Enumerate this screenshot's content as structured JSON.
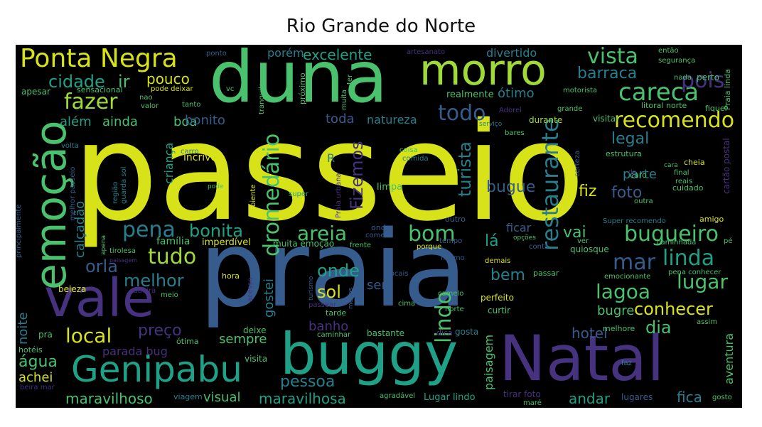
{
  "title": "Rio Grande do Norte",
  "palette": {
    "yellow": "#d8e219",
    "lime": "#a0da39",
    "green": "#4ac16d",
    "teal": "#1fa187",
    "cyan": "#277f8e",
    "blue": "#365c8d",
    "indigo": "#46327e",
    "purple": "#440154"
  },
  "words": [
    {
      "text": "passeio",
      "weight": 1.0
    },
    {
      "text": "praia",
      "weight": 0.82
    },
    {
      "text": "duna",
      "weight": 0.55
    },
    {
      "text": "Natal",
      "weight": 0.52
    },
    {
      "text": "buggy",
      "weight": 0.48
    },
    {
      "text": "vale",
      "weight": 0.4
    },
    {
      "text": "emoção",
      "weight": 0.38
    },
    {
      "text": "morro",
      "weight": 0.36
    },
    {
      "text": "Genipabu",
      "weight": 0.3
    },
    {
      "text": "Ponta Negra",
      "weight": 0.2
    },
    {
      "text": "careca",
      "weight": 0.18
    },
    {
      "text": "recomendo",
      "weight": 0.16
    },
    {
      "text": "restaurante",
      "weight": 0.16
    },
    {
      "text": "vista",
      "weight": 0.15
    },
    {
      "text": "pois",
      "weight": 0.14
    },
    {
      "text": "bom",
      "weight": 0.14
    },
    {
      "text": "dromedário",
      "weight": 0.14
    },
    {
      "text": "lindo",
      "weight": 0.13
    },
    {
      "text": "mar",
      "weight": 0.13
    },
    {
      "text": "linda",
      "weight": 0.13
    },
    {
      "text": "bugueiro",
      "weight": 0.13
    },
    {
      "text": "fazer",
      "weight": 0.12
    },
    {
      "text": "pena",
      "weight": 0.12
    },
    {
      "text": "todo",
      "weight": 0.12
    },
    {
      "text": "tudo",
      "weight": 0.12
    },
    {
      "text": "areia",
      "weight": 0.12
    },
    {
      "text": "lugar",
      "weight": 0.12
    },
    {
      "text": "conhecer",
      "weight": 0.11
    },
    {
      "text": "lagoa",
      "weight": 0.11
    },
    {
      "text": "local",
      "weight": 0.11
    },
    {
      "text": "cidade",
      "weight": 0.1
    },
    {
      "text": "ir",
      "weight": 0.1
    },
    {
      "text": "excelente",
      "weight": 0.1
    },
    {
      "text": "barraca",
      "weight": 0.1
    },
    {
      "text": "orla",
      "weight": 0.1
    },
    {
      "text": "melhor",
      "weight": 0.1
    },
    {
      "text": "bonita",
      "weight": 0.1
    },
    {
      "text": "Fizemos",
      "weight": 0.1
    },
    {
      "text": "turista",
      "weight": 0.1
    },
    {
      "text": "sol",
      "weight": 0.1
    },
    {
      "text": "onde",
      "weight": 0.1
    },
    {
      "text": "vai",
      "weight": 0.09
    },
    {
      "text": "dia",
      "weight": 0.09
    },
    {
      "text": "pouco",
      "weight": 0.09
    },
    {
      "text": "bugue",
      "weight": 0.09
    },
    {
      "text": "legal",
      "weight": 0.09
    },
    {
      "text": "pessoa",
      "weight": 0.09
    },
    {
      "text": "foto",
      "weight": 0.09
    },
    {
      "text": "fiz",
      "weight": 0.09
    },
    {
      "text": "bem",
      "weight": 0.09
    },
    {
      "text": "lá",
      "weight": 0.09
    },
    {
      "text": "maravilhosa",
      "weight": 0.08
    },
    {
      "text": "maravilhoso",
      "weight": 0.08
    },
    {
      "text": "água",
      "weight": 0.08
    },
    {
      "text": "preço",
      "weight": 0.08
    },
    {
      "text": "hotel",
      "weight": 0.08
    },
    {
      "text": "andar",
      "weight": 0.08
    },
    {
      "text": "fica",
      "weight": 0.08
    },
    {
      "text": "ótimo",
      "weight": 0.08
    },
    {
      "text": "boa",
      "weight": 0.08
    },
    {
      "text": "toda",
      "weight": 0.08
    },
    {
      "text": "natureza",
      "weight": 0.08
    },
    {
      "text": "além",
      "weight": 0.08
    },
    {
      "text": "ainda",
      "weight": 0.08
    },
    {
      "text": "bonito",
      "weight": 0.08
    },
    {
      "text": "parte",
      "weight": 0.08
    },
    {
      "text": "porém",
      "weight": 0.08
    },
    {
      "text": "divertido",
      "weight": 0.08
    },
    {
      "text": "sempre",
      "weight": 0.08
    },
    {
      "text": "paisagem",
      "weight": 0.08
    },
    {
      "text": "visual",
      "weight": 0.08
    },
    {
      "text": "gostei",
      "weight": 0.08
    },
    {
      "text": "noite",
      "weight": 0.08
    },
    {
      "text": "banho",
      "weight": 0.08
    },
    {
      "text": "bugre",
      "weight": 0.08
    },
    {
      "text": "ser",
      "weight": 0.08
    },
    {
      "text": "ficar",
      "weight": 0.07
    },
    {
      "text": "aventura",
      "weight": 0.07
    },
    {
      "text": "parada bug",
      "weight": 0.07
    },
    {
      "text": "calçadão",
      "weight": 0.07
    },
    {
      "text": "família",
      "weight": 0.07
    },
    {
      "text": "criança",
      "weight": 0.07
    },
    {
      "text": "achei",
      "weight": 0.07
    },
    {
      "text": "R",
      "weight": 0.06
    },
    {
      "text": "incrível",
      "weight": 0.06
    },
    {
      "text": "imperdível",
      "weight": 0.06
    },
    {
      "text": "muita emoção",
      "weight": 0.06
    },
    {
      "text": "quiosque",
      "weight": 0.06
    },
    {
      "text": "beleza",
      "weight": 0.06
    },
    {
      "text": "limpa",
      "weight": 0.06
    },
    {
      "text": "realmente",
      "weight": 0.06
    },
    {
      "text": "visitar",
      "weight": 0.06
    },
    {
      "text": "durante",
      "weight": 0.06
    },
    {
      "text": "perfeito",
      "weight": 0.06
    },
    {
      "text": "curtir",
      "weight": 0.06
    },
    {
      "text": "deixe",
      "weight": 0.06
    },
    {
      "text": "bastante",
      "weight": 0.06
    },
    {
      "text": "visita",
      "weight": 0.06
    },
    {
      "text": "viagem",
      "weight": 0.06
    },
    {
      "text": "lugares",
      "weight": 0.06
    },
    {
      "text": "tarde",
      "weight": 0.06
    },
    {
      "text": "passar",
      "weight": 0.06
    },
    {
      "text": "ótima",
      "weight": 0.06
    },
    {
      "text": "hora",
      "weight": 0.06
    },
    {
      "text": "Lugar lindo",
      "weight": 0.06
    },
    {
      "text": "tirar foto",
      "weight": 0.06
    },
    {
      "text": "melhore",
      "weight": 0.06
    },
    {
      "text": "emocionante",
      "weight": 0.06
    },
    {
      "text": "pena conhecer",
      "weight": 0.06
    },
    {
      "text": "caminhada",
      "weight": 0.06
    },
    {
      "text": "litoral norte",
      "weight": 0.06
    },
    {
      "text": "fiquei",
      "weight": 0.06
    },
    {
      "text": "estrutura",
      "weight": 0.06
    },
    {
      "text": "caro",
      "weight": 0.06
    },
    {
      "text": "cheia",
      "weight": 0.06
    },
    {
      "text": "cuidado",
      "weight": 0.06
    },
    {
      "text": "cartão postal",
      "weight": 0.06
    },
    {
      "text": "amigo",
      "weight": 0.06
    },
    {
      "text": "perto",
      "weight": 0.06
    },
    {
      "text": "motorista",
      "weight": 0.06
    },
    {
      "text": "segurança",
      "weight": 0.06
    },
    {
      "text": "nada",
      "weight": 0.06
    },
    {
      "text": "então",
      "weight": 0.06
    },
    {
      "text": "Praia linda",
      "weight": 0.06
    },
    {
      "text": "grande",
      "weight": 0.06
    },
    {
      "text": "serviço",
      "weight": 0.06
    },
    {
      "text": "Adorei",
      "weight": 0.06
    },
    {
      "text": "próximo",
      "weight": 0.06
    },
    {
      "text": "muita",
      "weight": 0.06
    },
    {
      "text": "ter",
      "weight": 0.06
    },
    {
      "text": "artesanato",
      "weight": 0.06
    },
    {
      "text": "ponto",
      "weight": 0.06
    },
    {
      "text": "apesar",
      "weight": 0.06
    },
    {
      "text": "sensacional",
      "weight": 0.06
    },
    {
      "text": "pode deixar",
      "weight": 0.06
    },
    {
      "text": "vc",
      "weight": 0.06
    },
    {
      "text": "tranquilo",
      "weight": 0.06
    },
    {
      "text": "valor",
      "weight": 0.06
    },
    {
      "text": "tanto",
      "weight": 0.06
    },
    {
      "text": "nao",
      "weight": 0.06
    },
    {
      "text": "volta",
      "weight": 0.06
    },
    {
      "text": "carro",
      "weight": 0.06
    },
    {
      "text": "região",
      "weight": 0.06
    },
    {
      "text": "guarda sol",
      "weight": 0.06
    },
    {
      "text": "melhor passeio",
      "weight": 0.06
    },
    {
      "text": "principalmente",
      "weight": 0.06
    },
    {
      "text": "ambiente",
      "weight": 0.06
    },
    {
      "text": "Praia urbana",
      "weight": 0.06
    },
    {
      "text": "coisa",
      "weight": 0.06
    },
    {
      "text": "comida",
      "weight": 0.06
    },
    {
      "text": "bares",
      "weight": 0.06
    },
    {
      "text": "certeza",
      "weight": 0.06
    },
    {
      "text": "super",
      "weight": 0.06
    },
    {
      "text": "outro",
      "weight": 0.06
    },
    {
      "text": "onda",
      "weight": 0.06
    },
    {
      "text": "comer",
      "weight": 0.06
    },
    {
      "text": "frente",
      "weight": 0.06
    },
    {
      "text": "tempo",
      "weight": 0.06
    },
    {
      "text": "porque",
      "weight": 0.06
    },
    {
      "text": "opções",
      "weight": 0.06
    },
    {
      "text": "ver",
      "weight": 0.06
    },
    {
      "text": "conta",
      "weight": 0.06
    },
    {
      "text": "Super recomendo",
      "weight": 0.06
    },
    {
      "text": "final",
      "weight": 0.06
    },
    {
      "text": "reais",
      "weight": 0.06
    },
    {
      "text": "outra",
      "weight": 0.06
    },
    {
      "text": "cara",
      "weight": 0.06
    },
    {
      "text": "pé",
      "weight": 0.06
    },
    {
      "text": "apena",
      "weight": 0.06
    },
    {
      "text": "tirolesa",
      "weight": 0.06
    },
    {
      "text": "paisagem",
      "weight": 0.06
    },
    {
      "text": "cadeira",
      "weight": 0.06
    },
    {
      "text": "meio",
      "weight": 0.06
    },
    {
      "text": "acesso",
      "weight": 0.06
    },
    {
      "text": "turismo",
      "weight": 0.06
    },
    {
      "text": "locais",
      "weight": 0.06
    },
    {
      "text": "ficamo",
      "weight": 0.06
    },
    {
      "text": "demais",
      "weight": 0.06
    },
    {
      "text": "menos",
      "weight": 0.06
    },
    {
      "text": "passear",
      "weight": 0.06
    },
    {
      "text": "cima",
      "weight": 0.06
    },
    {
      "text": "camelo",
      "weight": 0.06
    },
    {
      "text": "norte",
      "weight": 0.06
    },
    {
      "text": "gosta",
      "weight": 0.06
    },
    {
      "text": "dica",
      "weight": 0.06
    },
    {
      "text": "caminhar",
      "weight": 0.06
    },
    {
      "text": "assim",
      "weight": 0.06
    },
    {
      "text": "faz",
      "weight": 0.06
    },
    {
      "text": "hotéis",
      "weight": 0.06
    },
    {
      "text": "pra",
      "weight": 0.06
    },
    {
      "text": "beira mar",
      "weight": 0.06
    },
    {
      "text": "agradável",
      "weight": 0.06
    },
    {
      "text": "maré",
      "weight": 0.06
    },
    {
      "text": "gosto",
      "weight": 0.06
    },
    {
      "text": "pode",
      "weight": 0.06
    },
    {
      "text": "da",
      "weight": 0.06
    }
  ]
}
